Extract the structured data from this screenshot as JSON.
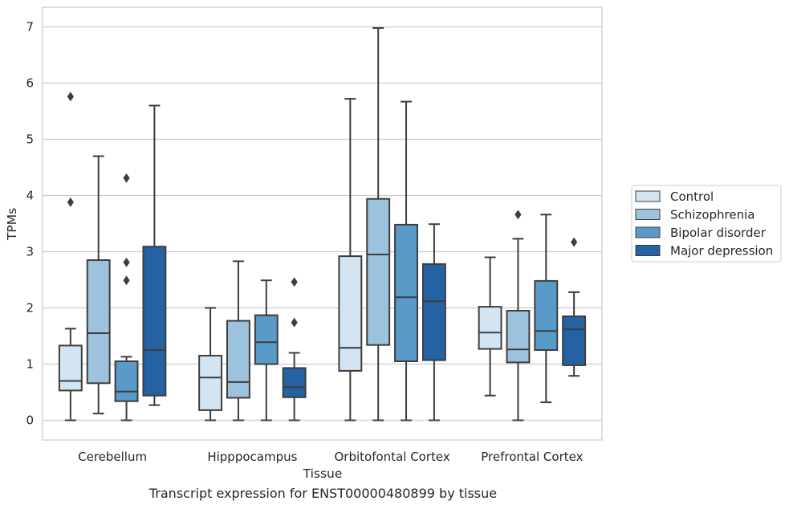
{
  "chart_data": {
    "type": "box",
    "xlabel": "Tissue",
    "ylabel": "TPMs",
    "caption": "Transcript expression for ENST00000480899 by tissue",
    "ylim": [
      -0.35,
      7.35
    ],
    "yticks": [
      0,
      1,
      2,
      3,
      4,
      5,
      6,
      7
    ],
    "grid": "horizontal",
    "legend_position": "right",
    "categories": [
      "Cerebellum",
      "Hipppocampus",
      "Orbitofontal Cortex",
      "Prefrontal Cortex"
    ],
    "series": [
      {
        "name": "Control",
        "color": "#d3e4f3",
        "boxes": [
          {
            "whislo": 0.0,
            "q1": 0.53,
            "med": 0.7,
            "q3": 1.33,
            "whishi": 1.63,
            "fliers": [
              3.88,
              5.76
            ]
          },
          {
            "whislo": 0.0,
            "q1": 0.18,
            "med": 0.76,
            "q3": 1.15,
            "whishi": 2.0,
            "fliers": []
          },
          {
            "whislo": 0.0,
            "q1": 0.88,
            "med": 1.29,
            "q3": 2.92,
            "whishi": 5.72,
            "fliers": []
          },
          {
            "whislo": 0.44,
            "q1": 1.27,
            "med": 1.56,
            "q3": 2.02,
            "whishi": 2.9,
            "fliers": []
          }
        ]
      },
      {
        "name": "Schizophrenia",
        "color": "#9cc2dd",
        "boxes": [
          {
            "whislo": 0.12,
            "q1": 0.66,
            "med": 1.55,
            "q3": 2.85,
            "whishi": 4.7,
            "fliers": []
          },
          {
            "whislo": 0.0,
            "q1": 0.4,
            "med": 0.68,
            "q3": 1.77,
            "whishi": 2.83,
            "fliers": []
          },
          {
            "whislo": 0.0,
            "q1": 1.34,
            "med": 2.95,
            "q3": 3.94,
            "whishi": 6.98,
            "fliers": []
          },
          {
            "whislo": 0.0,
            "q1": 1.03,
            "med": 1.26,
            "q3": 1.95,
            "whishi": 3.23,
            "fliers": [
              3.66
            ]
          }
        ]
      },
      {
        "name": "Bipolar disorder",
        "color": "#5a9ac8",
        "boxes": [
          {
            "whislo": 0.0,
            "q1": 0.34,
            "med": 0.51,
            "q3": 1.05,
            "whishi": 1.13,
            "fliers": [
              2.49,
              2.81,
              4.31
            ]
          },
          {
            "whislo": 0.0,
            "q1": 1.0,
            "med": 1.39,
            "q3": 1.87,
            "whishi": 2.49,
            "fliers": []
          },
          {
            "whislo": 0.0,
            "q1": 1.05,
            "med": 2.19,
            "q3": 3.48,
            "whishi": 5.67,
            "fliers": []
          },
          {
            "whislo": 0.32,
            "q1": 1.25,
            "med": 1.59,
            "q3": 2.48,
            "whishi": 3.66,
            "fliers": []
          }
        ]
      },
      {
        "name": "Major depression",
        "color": "#2562a3",
        "boxes": [
          {
            "whislo": 0.27,
            "q1": 0.44,
            "med": 1.25,
            "q3": 3.09,
            "whishi": 5.6,
            "fliers": []
          },
          {
            "whislo": 0.0,
            "q1": 0.41,
            "med": 0.59,
            "q3": 0.93,
            "whishi": 1.2,
            "fliers": [
              1.74,
              2.46
            ]
          },
          {
            "whislo": 0.0,
            "q1": 1.07,
            "med": 2.12,
            "q3": 2.78,
            "whishi": 3.49,
            "fliers": []
          },
          {
            "whislo": 0.79,
            "q1": 0.98,
            "med": 1.62,
            "q3": 1.85,
            "whishi": 2.28,
            "fliers": [
              3.17
            ]
          }
        ]
      }
    ]
  }
}
